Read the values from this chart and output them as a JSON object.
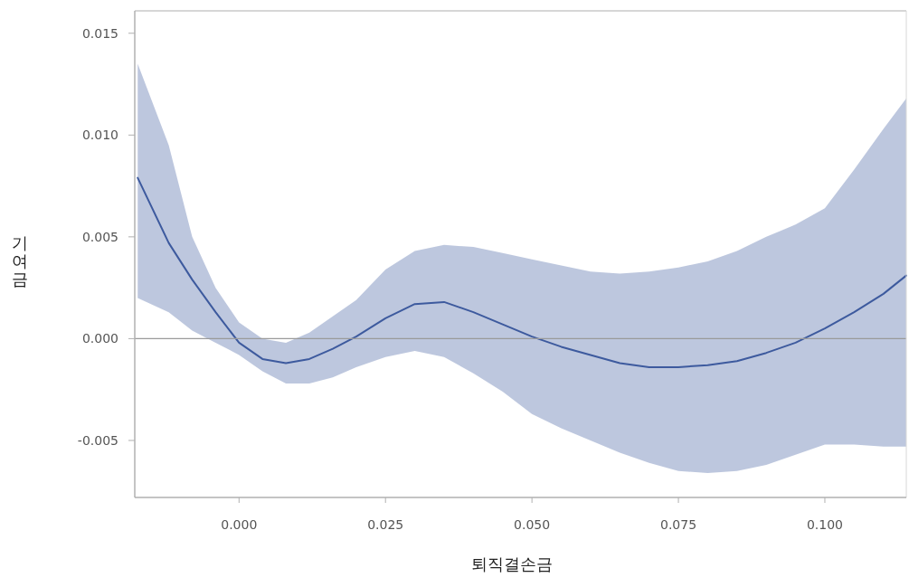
{
  "chart_data": {
    "type": "line",
    "xlabel": "퇴직결손금",
    "ylabel": "기여금",
    "xlim": [
      -0.0178,
      0.1139
    ],
    "ylim": [
      -0.0078,
      0.0161
    ],
    "xticks": [
      {
        "value": 0,
        "label": "0.000"
      },
      0.025,
      {
        "value": 0.05,
        "label": "0.050"
      },
      0.075,
      {
        "value": 0.1,
        "label": "0.100"
      }
    ],
    "yticks": [
      -0.005,
      {
        "value": 0,
        "label": "0.000"
      },
      0.005,
      {
        "value": 0.01,
        "label": "0.010"
      },
      0.015
    ],
    "grid": false,
    "marker": "none",
    "line_style": "solid",
    "ref_lines": [
      {
        "axis": "y",
        "value": 0,
        "label": null,
        "color": "#9a9a9a"
      }
    ],
    "series": [
      {
        "color": "#3d5a9e",
        "x": [
          -0.0173,
          -0.012,
          -0.008,
          -0.004,
          0,
          0.004,
          0.008,
          0.012,
          0.016,
          0.02,
          0.025,
          0.03,
          0.035,
          0.04,
          0.045,
          0.05,
          0.055,
          0.06,
          0.065,
          0.07,
          0.075,
          0.08,
          0.085,
          0.09,
          0.095,
          0.1,
          0.105,
          0.11,
          0.1139
        ],
        "values": [
          0.0079,
          0.0047,
          0.0029,
          0.0013,
          -0.0002,
          -0.001,
          -0.0012,
          -0.001,
          -0.0005,
          0.0001,
          0.001,
          0.0017,
          0.0018,
          0.0013,
          0.0007,
          0.0001,
          -0.0004,
          -0.0008,
          -0.0012,
          -0.0014,
          -0.0014,
          -0.0013,
          -0.0011,
          -0.0007,
          -0.0002,
          0.0005,
          0.0013,
          0.0022,
          0.0031
        ],
        "upper": [
          0.0135,
          0.0095,
          0.005,
          0.0025,
          0.0008,
          0,
          -0.0002,
          0.0003,
          0.0011,
          0.0019,
          0.0034,
          0.0043,
          0.0046,
          0.0045,
          0.0042,
          0.0039,
          0.0036,
          0.0033,
          0.0032,
          0.0033,
          0.0035,
          0.0038,
          0.0043,
          0.005,
          0.0056,
          0.0064,
          0.0083,
          0.0103,
          0.0118
        ],
        "lower": [
          0.002,
          0.0013,
          0.0004,
          -0.0002,
          -0.0008,
          -0.0016,
          -0.0022,
          -0.0022,
          -0.0019,
          -0.0014,
          -0.0009,
          -0.0006,
          -0.0009,
          -0.0017,
          -0.0026,
          -0.0037,
          -0.0044,
          -0.005,
          -0.0056,
          -0.0061,
          -0.0065,
          -0.0066,
          -0.0065,
          -0.0062,
          -0.0057,
          -0.0052,
          -0.0052,
          -0.0053,
          -0.0053
        ]
      }
    ]
  }
}
